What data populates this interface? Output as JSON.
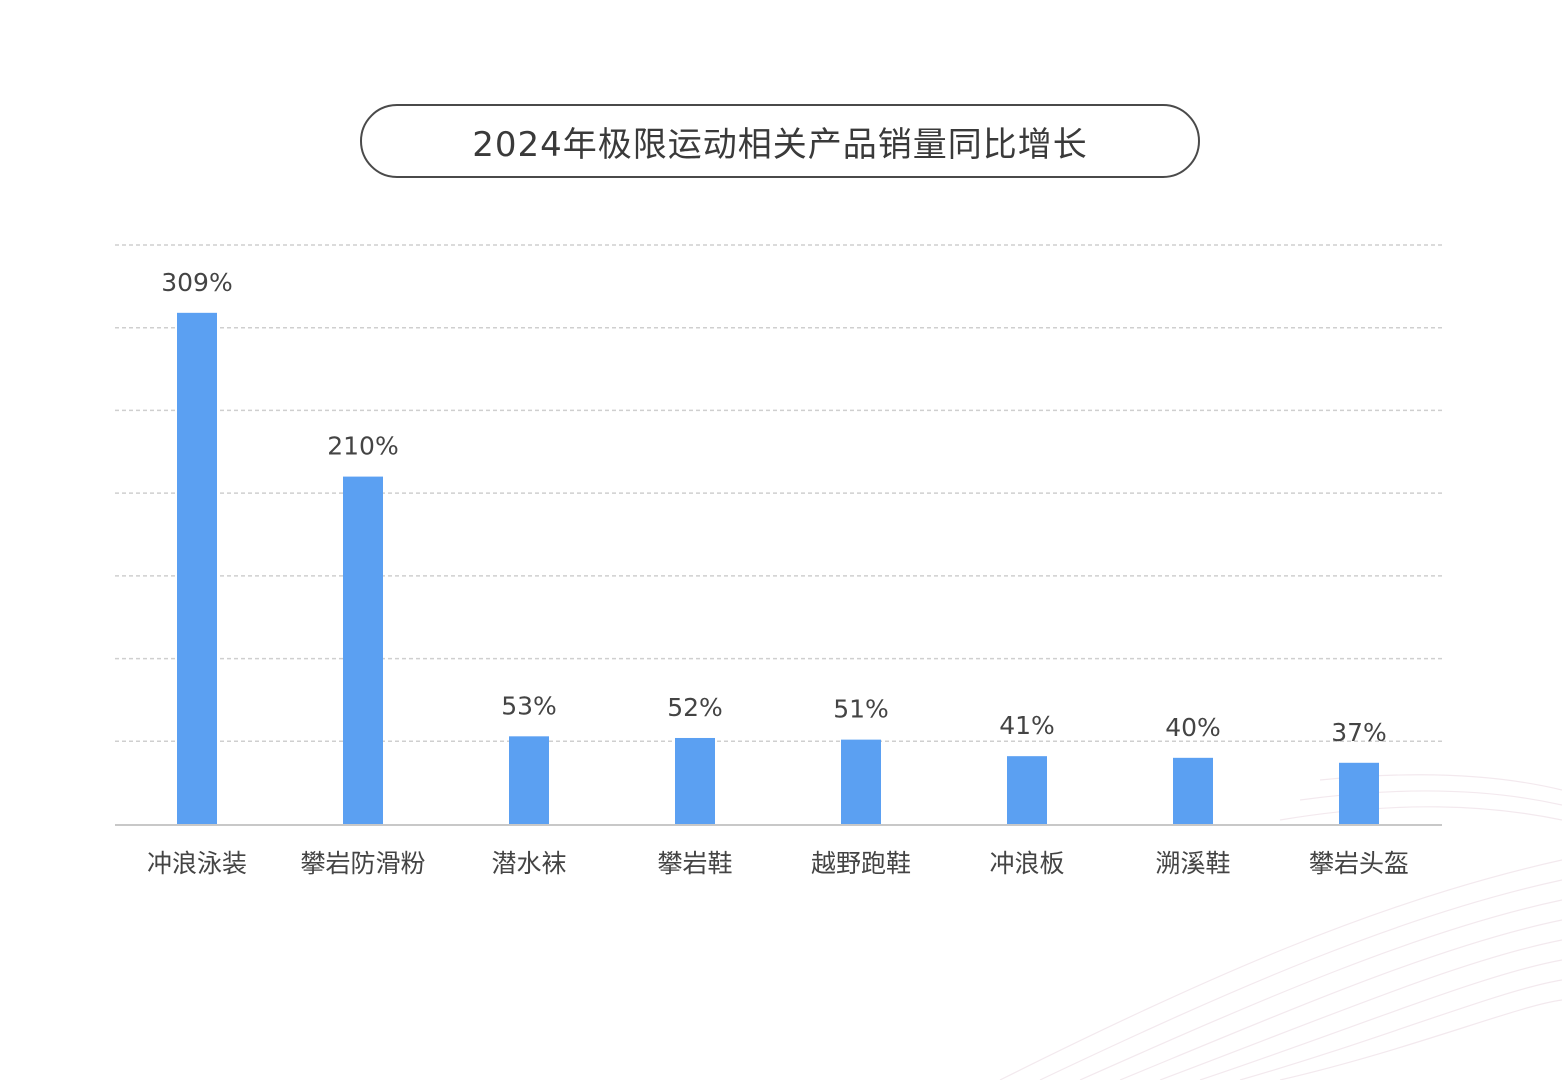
{
  "chart_data": {
    "type": "bar",
    "title": "2024年极限运动相关产品销量同比增长",
    "categories": [
      "冲浪泳装",
      "攀岩防滑粉",
      "潜水袜",
      "攀岩鞋",
      "越野跑鞋",
      "冲浪板",
      "溯溪鞋",
      "攀岩头盔"
    ],
    "values": [
      309,
      210,
      53,
      52,
      51,
      41,
      40,
      37
    ],
    "data_labels": [
      "309%",
      "210%",
      "53%",
      "52%",
      "51%",
      "41%",
      "40%",
      "37%"
    ],
    "xlabel": "",
    "ylabel": "",
    "ylim": [
      0,
      350
    ],
    "grid": true,
    "legend": "none",
    "bar_color": "#5ba0f2",
    "grid_color": "#cfcfcf",
    "axis_color": "#c8c8c8",
    "label_color": "#444444"
  }
}
